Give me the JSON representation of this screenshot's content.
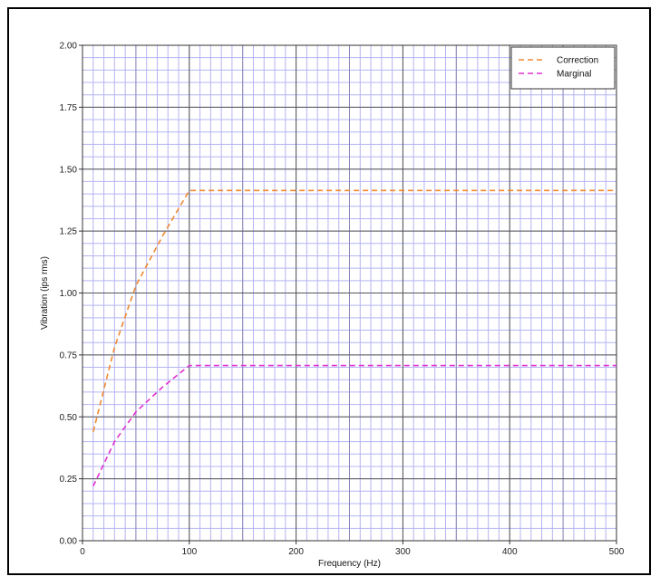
{
  "chart_data": {
    "type": "line",
    "title": "",
    "xlabel": "Frequency (Hz)",
    "ylabel": "Vibration (ips rms)",
    "xlim": [
      0,
      500
    ],
    "ylim": [
      0,
      2.0
    ],
    "x_ticks": [
      0,
      100,
      200,
      300,
      400,
      500
    ],
    "x_tick_labels": [
      "0",
      "100",
      "200",
      "300",
      "400",
      "500"
    ],
    "y_ticks": [
      0,
      0.25,
      0.5,
      0.75,
      1.0,
      1.25,
      1.5,
      1.75,
      2.0
    ],
    "y_tick_labels": [
      "0.00",
      "0.25",
      "0.50",
      "0.75",
      "1.00",
      "1.25",
      "1.50",
      "1.75",
      "2.00"
    ],
    "grid": {
      "major": true,
      "minor": true
    },
    "legend_position": "top-right",
    "series": [
      {
        "name": "Correction",
        "color": "#f08a30",
        "style": "dashed",
        "points": [
          [
            10,
            0.44
          ],
          [
            30,
            0.78
          ],
          [
            50,
            1.03
          ],
          [
            75,
            1.23
          ],
          [
            100,
            1.414
          ],
          [
            500,
            1.414
          ]
        ]
      },
      {
        "name": "Marginal",
        "color": "#e030d0",
        "style": "dashed",
        "points": [
          [
            10,
            0.22
          ],
          [
            30,
            0.4
          ],
          [
            50,
            0.52
          ],
          [
            75,
            0.62
          ],
          [
            100,
            0.707
          ],
          [
            500,
            0.707
          ]
        ]
      }
    ]
  }
}
